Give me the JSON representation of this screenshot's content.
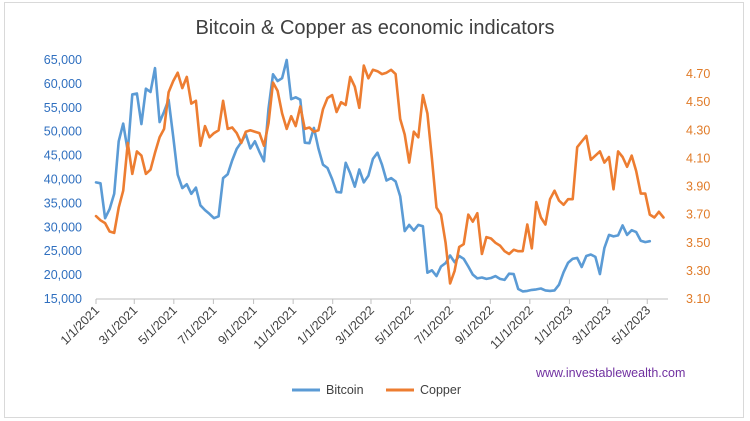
{
  "chart_data": {
    "type": "line",
    "title": "Bitcoin & Copper as economic indicators",
    "watermark": "www.investablewealth.com",
    "x_dates": [
      "2021-01-01",
      "2021-01-08",
      "2021-01-15",
      "2021-01-22",
      "2021-01-29",
      "2021-02-05",
      "2021-02-12",
      "2021-02-19",
      "2021-02-26",
      "2021-03-05",
      "2021-03-12",
      "2021-03-19",
      "2021-03-26",
      "2021-04-02",
      "2021-04-09",
      "2021-04-16",
      "2021-04-23",
      "2021-04-30",
      "2021-05-07",
      "2021-05-14",
      "2021-05-21",
      "2021-05-28",
      "2021-06-04",
      "2021-06-11",
      "2021-06-18",
      "2021-06-25",
      "2021-07-02",
      "2021-07-09",
      "2021-07-16",
      "2021-07-23",
      "2021-07-30",
      "2021-08-06",
      "2021-08-13",
      "2021-08-20",
      "2021-08-27",
      "2021-09-03",
      "2021-09-10",
      "2021-09-17",
      "2021-09-24",
      "2021-10-01",
      "2021-10-08",
      "2021-10-15",
      "2021-10-22",
      "2021-10-29",
      "2021-11-05",
      "2021-11-12",
      "2021-11-19",
      "2021-11-26",
      "2021-12-03",
      "2021-12-10",
      "2021-12-17",
      "2021-12-24",
      "2021-12-31",
      "2022-01-07",
      "2022-01-14",
      "2022-01-21",
      "2022-01-28",
      "2022-02-04",
      "2022-02-11",
      "2022-02-18",
      "2022-02-25",
      "2022-03-04",
      "2022-03-11",
      "2022-03-18",
      "2022-03-25",
      "2022-04-01",
      "2022-04-08",
      "2022-04-15",
      "2022-04-22",
      "2022-04-29",
      "2022-05-06",
      "2022-05-13",
      "2022-05-20",
      "2022-05-27",
      "2022-06-03",
      "2022-06-10",
      "2022-06-17",
      "2022-06-24",
      "2022-07-01",
      "2022-07-08",
      "2022-07-15",
      "2022-07-22",
      "2022-07-29",
      "2022-08-05",
      "2022-08-12",
      "2022-08-19",
      "2022-08-26",
      "2022-09-02",
      "2022-09-09",
      "2022-09-16",
      "2022-09-23",
      "2022-09-30",
      "2022-10-07",
      "2022-10-14",
      "2022-10-21",
      "2022-10-28",
      "2022-11-04",
      "2022-11-11",
      "2022-11-18",
      "2022-11-25",
      "2022-12-02",
      "2022-12-09",
      "2022-12-16",
      "2022-12-23",
      "2022-12-30",
      "2023-01-06",
      "2023-01-13",
      "2023-01-20",
      "2023-01-27",
      "2023-02-03",
      "2023-02-10",
      "2023-02-17",
      "2023-02-24",
      "2023-03-03",
      "2023-03-10",
      "2023-03-17",
      "2023-03-24",
      "2023-03-31",
      "2023-04-07",
      "2023-04-14",
      "2023-04-21",
      "2023-04-28",
      "2023-05-05",
      "2023-05-12",
      "2023-05-19",
      "2023-05-26",
      "2023-06-02"
    ],
    "x_ticks": [
      "1/1/2021",
      "3/1/2021",
      "5/1/2021",
      "7/1/2021",
      "9/1/2021",
      "11/1/2021",
      "1/1/2022",
      "3/1/2022",
      "5/1/2022",
      "7/1/2022",
      "9/1/2022",
      "11/1/2022",
      "1/1/2023",
      "3/1/2023",
      "5/1/2023"
    ],
    "y_left": {
      "ticks": [
        "15,000",
        "20,000",
        "25,000",
        "30,000",
        "35,000",
        "40,000",
        "45,000",
        "50,000",
        "55,000",
        "60,000",
        "65,000"
      ],
      "min": 15000,
      "max": 65000
    },
    "y_right": {
      "ticks": [
        "3.10",
        "3.30",
        "3.50",
        "3.70",
        "3.90",
        "4.10",
        "4.30",
        "4.50",
        "4.70"
      ],
      "min": 3.1,
      "max": 4.8
    },
    "legend_position": "bottom",
    "series": [
      {
        "name": "Bitcoin",
        "axis": "left",
        "color": "#5b9bd5",
        "values": [
          39400,
          39200,
          31900,
          33800,
          37000,
          48000,
          51700,
          45900,
          57800,
          58000,
          51600,
          59000,
          58300,
          63300,
          52000,
          54200,
          56700,
          49000,
          41000,
          38200,
          39000,
          37000,
          38300,
          34600,
          33600,
          32800,
          31900,
          32300,
          40300,
          41100,
          44000,
          46400,
          47800,
          49500,
          46500,
          48000,
          45800,
          43800,
          54800,
          62000,
          60600,
          61200,
          65000,
          56800,
          57200,
          56700,
          47700,
          47600,
          50800,
          46500,
          43100,
          42400,
          40100,
          37400,
          37300,
          43500,
          41300,
          38500,
          42100,
          39400,
          40800,
          44300,
          45600,
          43100,
          39800,
          40300,
          39600,
          36500,
          29200,
          30500,
          29300,
          30500,
          30200,
          20500,
          21000,
          19800,
          21800,
          22500,
          24100,
          22700,
          24000,
          23400,
          21800,
          20100,
          19300,
          19500,
          19200,
          19400,
          19800,
          19200,
          19000,
          20300,
          20200,
          17100,
          16600,
          16700,
          16900,
          17000,
          17200,
          16800,
          16700,
          16800,
          18000,
          20600,
          22600,
          23400,
          23600,
          21700,
          24000,
          24300,
          23800,
          20200,
          25700,
          28400,
          28100,
          28300,
          30400,
          28400,
          29400,
          29000,
          27200,
          26900,
          27100
        ]
      },
      {
        "name": "Copper",
        "axis": "right",
        "color": "#ed7d31",
        "values": [
          3.69,
          3.66,
          3.64,
          3.58,
          3.57,
          3.75,
          3.87,
          4.21,
          3.99,
          4.15,
          4.12,
          3.99,
          4.02,
          4.14,
          4.25,
          4.31,
          4.57,
          4.65,
          4.71,
          4.6,
          4.68,
          4.49,
          4.51,
          4.19,
          4.33,
          4.25,
          4.28,
          4.3,
          4.51,
          4.31,
          4.32,
          4.28,
          4.21,
          4.29,
          4.3,
          4.29,
          4.28,
          4.19,
          4.35,
          4.64,
          4.58,
          4.42,
          4.31,
          4.4,
          4.33,
          4.47,
          4.31,
          4.32,
          4.29,
          4.3,
          4.45,
          4.53,
          4.55,
          4.43,
          4.5,
          4.48,
          4.68,
          4.61,
          4.46,
          4.76,
          4.67,
          4.73,
          4.72,
          4.7,
          4.71,
          4.73,
          4.7,
          4.38,
          4.27,
          4.07,
          4.29,
          4.25,
          4.55,
          4.42,
          4.1,
          3.75,
          3.7,
          3.5,
          3.21,
          3.3,
          3.47,
          3.49,
          3.7,
          3.65,
          3.71,
          3.42,
          3.54,
          3.53,
          3.5,
          3.48,
          3.44,
          3.42,
          3.45,
          3.44,
          3.44,
          3.63,
          3.46,
          3.79,
          3.68,
          3.63,
          3.81,
          3.87,
          3.8,
          3.77,
          3.81,
          3.81,
          4.18,
          4.22,
          4.26,
          4.09,
          4.12,
          4.15,
          4.07,
          4.11,
          3.88,
          4.15,
          4.11,
          4.04,
          4.12,
          4.01,
          3.85,
          3.85,
          3.7,
          3.68,
          3.72,
          3.68
        ]
      }
    ]
  }
}
